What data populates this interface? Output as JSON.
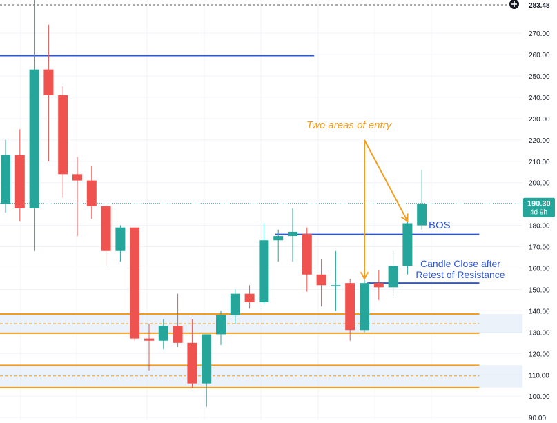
{
  "chart_data": {
    "type": "candlestick",
    "y_axis": {
      "ticks": [
        "270.00",
        "260.00",
        "250.00",
        "240.00",
        "230.00",
        "220.00",
        "210.00",
        "200.00",
        "190.00",
        "180.00",
        "170.00",
        "160.00",
        "150.00",
        "140.00",
        "130.00",
        "120.00",
        "110.00",
        "100.00",
        "90.00"
      ],
      "tick_values": [
        270,
        260,
        250,
        240,
        230,
        220,
        210,
        200,
        190,
        180,
        170,
        160,
        150,
        140,
        130,
        120,
        110,
        100,
        90
      ],
      "top_label": "283.48",
      "range": [
        89.5,
        284
      ]
    },
    "current_price": {
      "value": 190.3,
      "label": "190.30",
      "countdown": "4d 9h"
    },
    "candles": [
      {
        "o": 190,
        "h": 220,
        "l": 186,
        "c": 213,
        "i": 0
      },
      {
        "o": 213,
        "h": 225,
        "l": 182,
        "c": 188,
        "i": 1
      },
      {
        "o": 188,
        "h": 290,
        "l": 168,
        "c": 253,
        "i": 2
      },
      {
        "o": 253,
        "h": 274,
        "l": 210,
        "c": 241,
        "i": 3
      },
      {
        "o": 241,
        "h": 245,
        "l": 193,
        "c": 204,
        "i": 4
      },
      {
        "o": 204,
        "h": 212,
        "l": 175,
        "c": 201,
        "i": 5
      },
      {
        "o": 201,
        "h": 208,
        "l": 183,
        "c": 189,
        "i": 6
      },
      {
        "o": 189,
        "h": 190,
        "l": 161,
        "c": 168,
        "i": 7
      },
      {
        "o": 168,
        "h": 180,
        "l": 163,
        "c": 179,
        "i": 8
      },
      {
        "o": 179,
        "h": 179,
        "l": 126,
        "c": 127,
        "i": 9
      },
      {
        "o": 127,
        "h": 134,
        "l": 112,
        "c": 126,
        "i": 10
      },
      {
        "o": 126,
        "h": 136,
        "l": 122,
        "c": 133,
        "i": 11
      },
      {
        "o": 133,
        "h": 148,
        "l": 123,
        "c": 125,
        "i": 12
      },
      {
        "o": 125,
        "h": 136,
        "l": 104,
        "c": 106,
        "i": 13
      },
      {
        "o": 106,
        "h": 129,
        "l": 95,
        "c": 129,
        "i": 14
      },
      {
        "o": 129,
        "h": 140,
        "l": 124,
        "c": 138,
        "i": 15
      },
      {
        "o": 138,
        "h": 150,
        "l": 134,
        "c": 148,
        "i": 16
      },
      {
        "o": 148,
        "h": 152,
        "l": 141,
        "c": 144,
        "i": 17
      },
      {
        "o": 144,
        "h": 181,
        "l": 143,
        "c": 173,
        "i": 18
      },
      {
        "o": 173,
        "h": 178,
        "l": 163,
        "c": 175,
        "i": 19
      },
      {
        "o": 175,
        "h": 188,
        "l": 163,
        "c": 177,
        "i": 20
      },
      {
        "o": 176,
        "h": 179,
        "l": 149,
        "c": 157,
        "i": 21
      },
      {
        "o": 157,
        "h": 164,
        "l": 142,
        "c": 152,
        "i": 22
      },
      {
        "o": 152,
        "h": 168,
        "l": 140,
        "c": 152,
        "i": 23
      },
      {
        "o": 153,
        "h": 155,
        "l": 126,
        "c": 131,
        "i": 24
      },
      {
        "o": 131,
        "h": 155,
        "l": 130,
        "c": 153,
        "i": 25
      },
      {
        "o": 153,
        "h": 159,
        "l": 145,
        "c": 151,
        "i": 26
      },
      {
        "o": 151,
        "h": 168,
        "l": 147,
        "c": 161,
        "i": 27
      },
      {
        "o": 161,
        "h": 183,
        "l": 157,
        "c": 181,
        "i": 28
      },
      {
        "o": 180,
        "h": 206,
        "l": 178,
        "c": 190,
        "i": 29
      }
    ],
    "horizontal_lines": [
      {
        "price": 259.5,
        "color": "#2f56d3",
        "x_from_index": -1,
        "x_to_index": 21.5,
        "style": "solid"
      },
      {
        "price": 175.8,
        "color": "#2f56d3",
        "x_from_index": 18.8,
        "x_to_index": 33,
        "style": "solid"
      },
      {
        "price": 153,
        "color": "#2f56d3",
        "x_from_index": 25.2,
        "x_to_index": 33,
        "style": "solid"
      },
      {
        "price": 138.5,
        "color": "#f29d1e",
        "x_from_index": -1,
        "x_to_index": 33,
        "style": "solid"
      },
      {
        "price": 134,
        "color": "#f29d1e",
        "x_from_index": -1,
        "x_to_index": 33,
        "style": "dashed"
      },
      {
        "price": 129.5,
        "color": "#f29d1e",
        "x_from_index": -1,
        "x_to_index": 33,
        "style": "solid"
      },
      {
        "price": 114.5,
        "color": "#f29d1e",
        "x_from_index": -1,
        "x_to_index": 33,
        "style": "solid"
      },
      {
        "price": 109.5,
        "color": "#f29d1e",
        "x_from_index": -1,
        "x_to_index": 33,
        "style": "dashed"
      },
      {
        "price": 104,
        "color": "#f29d1e",
        "x_from_index": -1,
        "x_to_index": 33,
        "style": "solid"
      }
    ],
    "zones": [
      {
        "from": 129.5,
        "to": 138.5,
        "color": "#dbe7f5"
      },
      {
        "from": 104,
        "to": 114.5,
        "color": "#dbe7f5"
      }
    ],
    "annotations": [
      {
        "text": "Two areas of entry",
        "color": "#f29d1e",
        "italic": true
      },
      {
        "text": "BOS",
        "color": "#2f56d3"
      },
      {
        "text": "Candle Close after",
        "color": "#2f56d3"
      },
      {
        "text": "Retest of Resistance",
        "color": "#2f56d3"
      }
    ],
    "arrows": [
      {
        "color": "#f29d1e",
        "from_index": 25,
        "from_price": 220,
        "to_index": 25,
        "to_price": 155
      },
      {
        "color": "#f29d1e",
        "from_index": 25,
        "from_price": 220,
        "to_index": 28,
        "to_price": 182
      }
    ],
    "colors": {
      "up": "#26a69a",
      "down": "#ef5350",
      "grid": "#f0f3fa",
      "axis_text": "#131722"
    }
  }
}
